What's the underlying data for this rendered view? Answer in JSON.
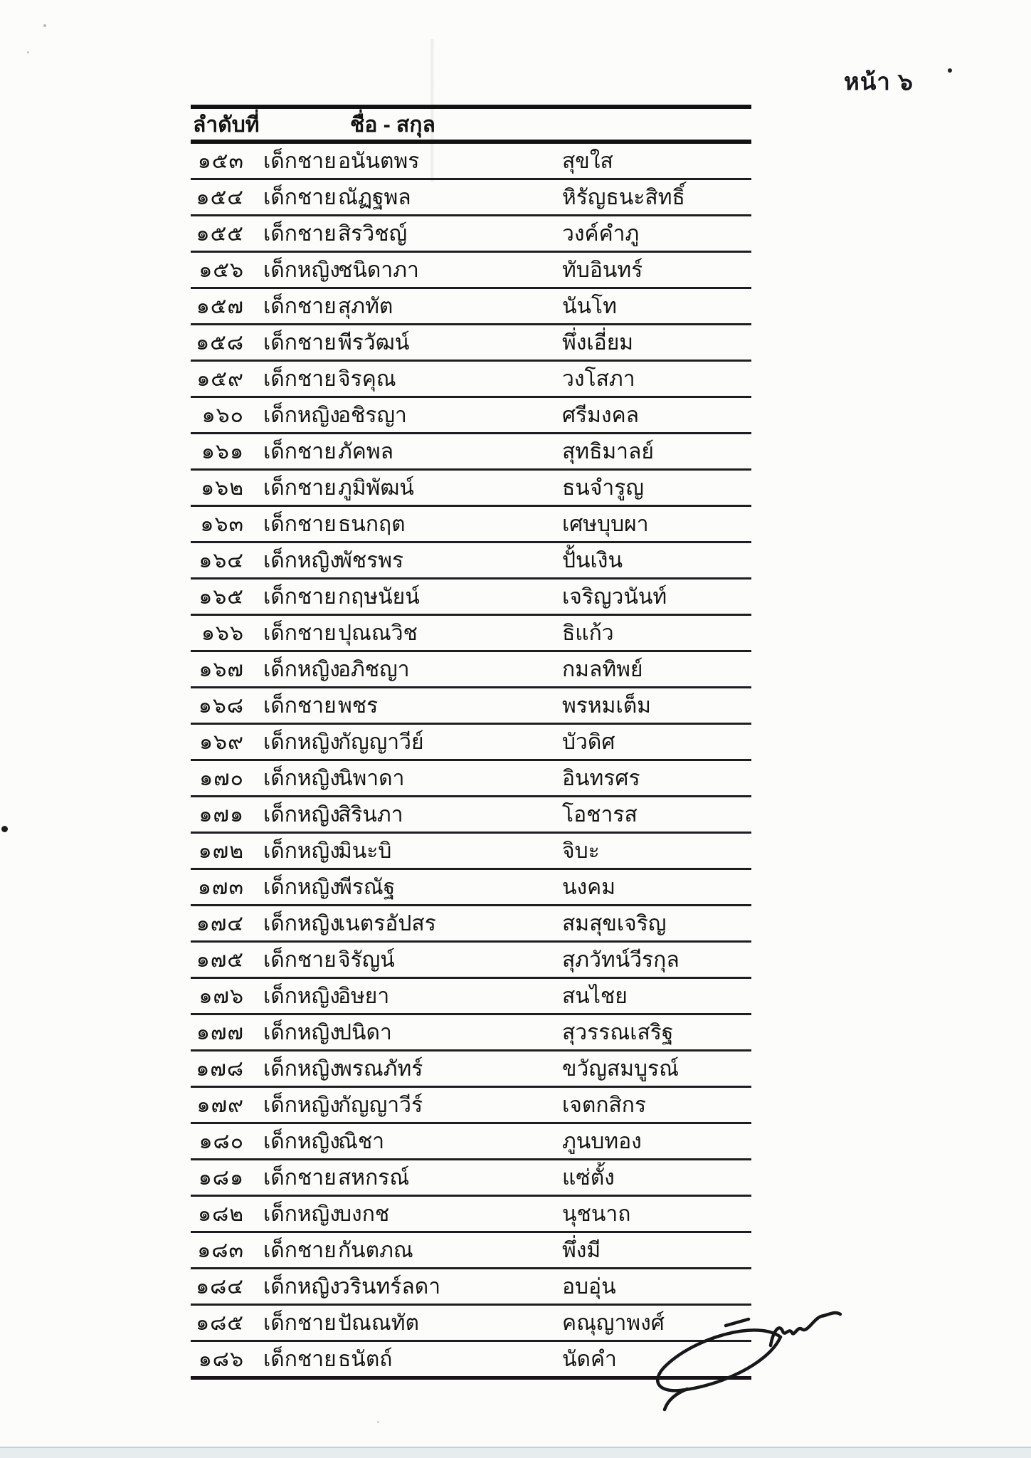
{
  "page": {
    "page_label": "หน้า ๖",
    "number_header": "ลำดับที่",
    "name_header": "ชื่อ - สกุล"
  },
  "students": [
    {
      "no": "๑๕๓",
      "prefix": "เด็กชาย",
      "first_name": "อนันตพร",
      "last_name": "สุขใส"
    },
    {
      "no": "๑๕๔",
      "prefix": "เด็กชาย",
      "first_name": "ณัฏฐพล",
      "last_name": "หิรัญธนะสิทธิ์"
    },
    {
      "no": "๑๕๕",
      "prefix": "เด็กชาย",
      "first_name": "สิรวิชญ์",
      "last_name": "วงค์คำภู"
    },
    {
      "no": "๑๕๖",
      "prefix": "เด็กหญิง",
      "first_name": "ชนิดาภา",
      "last_name": "ทับอินทร์"
    },
    {
      "no": "๑๕๗",
      "prefix": "เด็กชาย",
      "first_name": "สุภทัต",
      "last_name": "นันโท"
    },
    {
      "no": "๑๕๘",
      "prefix": "เด็กชาย",
      "first_name": "พีรวัฒน์",
      "last_name": "พึ่งเอี่ยม"
    },
    {
      "no": "๑๕๙",
      "prefix": "เด็กชาย",
      "first_name": "จิรคุณ",
      "last_name": "วงโสภา"
    },
    {
      "no": "๑๖๐",
      "prefix": "เด็กหญิง",
      "first_name": "อชิรญา",
      "last_name": "ศรีมงคล"
    },
    {
      "no": "๑๖๑",
      "prefix": "เด็กชาย",
      "first_name": "ภัคพล",
      "last_name": "สุทธิมาลย์"
    },
    {
      "no": "๑๖๒",
      "prefix": "เด็กชาย",
      "first_name": "ภูมิพัฒน์",
      "last_name": "ธนจำรูญ"
    },
    {
      "no": "๑๖๓",
      "prefix": "เด็กชาย",
      "first_name": "ธนกฤต",
      "last_name": "เศษบุบผา"
    },
    {
      "no": "๑๖๔",
      "prefix": "เด็กหญิง",
      "first_name": "พัชรพร",
      "last_name": "ปั้นเงิน"
    },
    {
      "no": "๑๖๕",
      "prefix": "เด็กชาย",
      "first_name": "กฤษนัยน์",
      "last_name": "เจริญวนันท์"
    },
    {
      "no": "๑๖๖",
      "prefix": "เด็กชาย",
      "first_name": "ปุณณวิช",
      "last_name": "ธิแก้ว"
    },
    {
      "no": "๑๖๗",
      "prefix": "เด็กหญิง",
      "first_name": "อภิชญา",
      "last_name": "กมลทิพย์"
    },
    {
      "no": "๑๖๘",
      "prefix": "เด็กชาย",
      "first_name": "พชร",
      "last_name": "พรหมเต็ม"
    },
    {
      "no": "๑๖๙",
      "prefix": "เด็กหญิง",
      "first_name": "กัญญาวีย์",
      "last_name": "บัวดิศ"
    },
    {
      "no": "๑๗๐",
      "prefix": "เด็กหญิง",
      "first_name": "นิพาดา",
      "last_name": "อินทรศร"
    },
    {
      "no": "๑๗๑",
      "prefix": "เด็กหญิง",
      "first_name": "สิรินภา",
      "last_name": "โอชารส"
    },
    {
      "no": "๑๗๒",
      "prefix": "เด็กหญิง",
      "first_name": "มินะบิ",
      "last_name": "จิบะ"
    },
    {
      "no": "๑๗๓",
      "prefix": "เด็กหญิง",
      "first_name": "พีรณัฐ",
      "last_name": "นงคม"
    },
    {
      "no": "๑๗๔",
      "prefix": "เด็กหญิง",
      "first_name": "เนตรอัปสร",
      "last_name": "สมสุขเจริญ"
    },
    {
      "no": "๑๗๕",
      "prefix": "เด็กชาย",
      "first_name": "จิรัญน์",
      "last_name": "สุภวัทน์วีรกุล"
    },
    {
      "no": "๑๗๖",
      "prefix": "เด็กหญิง",
      "first_name": "อิษยา",
      "last_name": "สนไชย"
    },
    {
      "no": "๑๗๗",
      "prefix": "เด็กหญิง",
      "first_name": "ปนิดา",
      "last_name": "สุวรรณเสริฐ"
    },
    {
      "no": "๑๗๘",
      "prefix": "เด็กหญิง",
      "first_name": "พรณภัทร์",
      "last_name": "ขวัญสมบูรณ์"
    },
    {
      "no": "๑๗๙",
      "prefix": "เด็กหญิง",
      "first_name": "กัญญาวีร์",
      "last_name": "เจตกสิกร"
    },
    {
      "no": "๑๘๐",
      "prefix": "เด็กหญิง",
      "first_name": "ณิชา",
      "last_name": "ภูนบทอง"
    },
    {
      "no": "๑๘๑",
      "prefix": "เด็กชาย",
      "first_name": "สหกรณ์",
      "last_name": "แซ่ตั้ง"
    },
    {
      "no": "๑๘๒",
      "prefix": "เด็กหญิง",
      "first_name": "บงกช",
      "last_name": "นุชนาถ"
    },
    {
      "no": "๑๘๓",
      "prefix": "เด็กชาย",
      "first_name": "กันตภณ",
      "last_name": "พึ่งมี"
    },
    {
      "no": "๑๘๔",
      "prefix": "เด็กหญิง",
      "first_name": "วรินทร์ลดา",
      "last_name": "อบอุ่น"
    },
    {
      "no": "๑๘๕",
      "prefix": "เด็กชาย",
      "first_name": "ปัณณทัต",
      "last_name": "คณุญาพงศ์"
    },
    {
      "no": "๑๘๖",
      "prefix": "เด็กชาย",
      "first_name": "ธนัตถ์",
      "last_name": "นัดคำ"
    }
  ]
}
